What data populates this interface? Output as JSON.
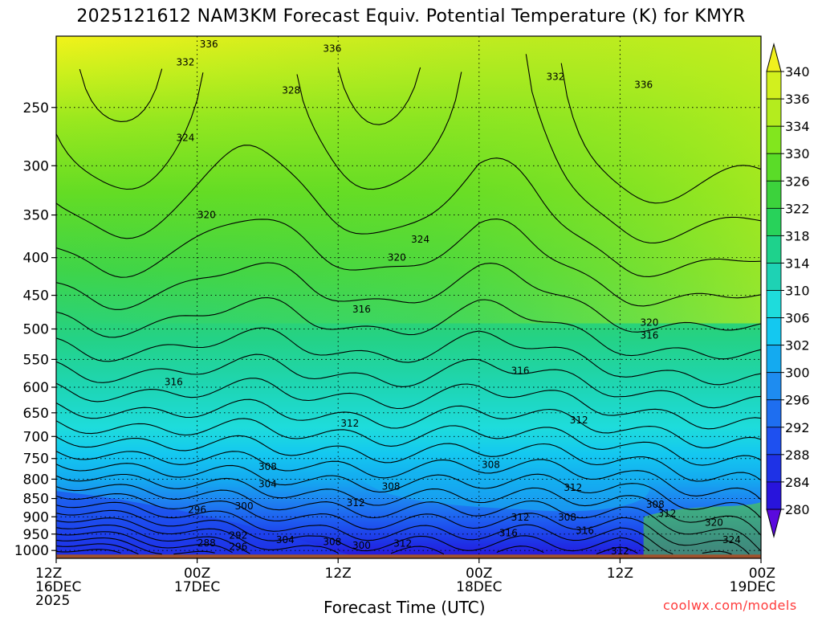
{
  "title": "2025121612 NAM3KM Forecast Equiv. Potential Temperature (K) for KMYR",
  "credit": "coolwx.com/models",
  "colors": {
    "contour": "#000000",
    "ground": "#a0522d",
    "credit": "#ff3b3b"
  },
  "chart_data": {
    "type": "heatmap",
    "title": "2025121612 NAM3KM Forecast Equiv. Potential Temperature (K) for KMYR",
    "xlabel": "Forecast Time (UTC)",
    "ylabel": "",
    "x_ticks": [
      {
        "hour": 0,
        "label": [
          "12Z",
          "16DEC",
          "2025"
        ]
      },
      {
        "hour": 12,
        "label": [
          "00Z",
          "17DEC"
        ]
      },
      {
        "hour": 24,
        "label": [
          "12Z"
        ]
      },
      {
        "hour": 36,
        "label": [
          "00Z",
          "18DEC"
        ]
      },
      {
        "hour": 48,
        "label": [
          "12Z"
        ]
      },
      {
        "hour": 60,
        "label": [
          "00Z",
          "19DEC"
        ]
      }
    ],
    "xlim": [
      0,
      60
    ],
    "y_scale": "log-pressure (hPa), inverted",
    "y_ticks": [
      250,
      300,
      350,
      400,
      450,
      500,
      550,
      600,
      650,
      700,
      750,
      800,
      850,
      900,
      950,
      1000
    ],
    "ylim": [
      1025,
      200
    ],
    "grid": "dotted",
    "colorbar": {
      "labels": [
        340,
        336,
        334,
        330,
        326,
        322,
        318,
        314,
        310,
        306,
        302,
        300,
        296,
        292,
        288,
        284,
        280
      ],
      "colors": [
        "#f0f01e",
        "#d2f01e",
        "#b4ec1e",
        "#82e61e",
        "#5adc28",
        "#3cd23c",
        "#28d25a",
        "#1ed28c",
        "#1ed2b4",
        "#1edcdc",
        "#14c8f0",
        "#14aaf0",
        "#1e8cf0",
        "#1e6ef0",
        "#1e50f0",
        "#1e32e6",
        "#2814dc",
        "#5a0ade"
      ],
      "placement": "right",
      "extend": "both"
    },
    "contour_labels": [
      {
        "hour": 13,
        "p": 205,
        "value": "336"
      },
      {
        "hour": 23.5,
        "p": 208,
        "value": "336"
      },
      {
        "hour": 11,
        "p": 217,
        "value": "332"
      },
      {
        "hour": 42.5,
        "p": 227,
        "value": "332"
      },
      {
        "hour": 50,
        "p": 233,
        "value": "336"
      },
      {
        "hour": 20,
        "p": 237,
        "value": "328"
      },
      {
        "hour": 11,
        "p": 275,
        "value": "324"
      },
      {
        "hour": 12.8,
        "p": 350,
        "value": "320"
      },
      {
        "hour": 31,
        "p": 378,
        "value": "324"
      },
      {
        "hour": 29,
        "p": 400,
        "value": "320"
      },
      {
        "hour": 26,
        "p": 470,
        "value": "316"
      },
      {
        "hour": 50.5,
        "p": 490,
        "value": "320"
      },
      {
        "hour": 50.5,
        "p": 510,
        "value": "316"
      },
      {
        "hour": 39.5,
        "p": 570,
        "value": "316"
      },
      {
        "hour": 10,
        "p": 590,
        "value": "316"
      },
      {
        "hour": 25,
        "p": 672,
        "value": "312"
      },
      {
        "hour": 44.5,
        "p": 665,
        "value": "312"
      },
      {
        "hour": 18,
        "p": 770,
        "value": "308"
      },
      {
        "hour": 37,
        "p": 765,
        "value": "308"
      },
      {
        "hour": 18,
        "p": 812,
        "value": "304"
      },
      {
        "hour": 28.5,
        "p": 818,
        "value": "308"
      },
      {
        "hour": 44,
        "p": 822,
        "value": "312"
      },
      {
        "hour": 16,
        "p": 870,
        "value": "300"
      },
      {
        "hour": 12,
        "p": 880,
        "value": "296"
      },
      {
        "hour": 25.5,
        "p": 862,
        "value": "312"
      },
      {
        "hour": 51,
        "p": 866,
        "value": "308"
      },
      {
        "hour": 52,
        "p": 890,
        "value": "312"
      },
      {
        "hour": 39.5,
        "p": 902,
        "value": "312"
      },
      {
        "hour": 43.5,
        "p": 902,
        "value": "308"
      },
      {
        "hour": 56,
        "p": 917,
        "value": "320"
      },
      {
        "hour": 38.5,
        "p": 947,
        "value": "316"
      },
      {
        "hour": 45,
        "p": 940,
        "value": "316"
      },
      {
        "hour": 15.5,
        "p": 954,
        "value": "292"
      },
      {
        "hour": 19.5,
        "p": 967,
        "value": "304"
      },
      {
        "hour": 23.5,
        "p": 973,
        "value": "308"
      },
      {
        "hour": 12.8,
        "p": 977,
        "value": "288"
      },
      {
        "hour": 15.5,
        "p": 988,
        "value": "296"
      },
      {
        "hour": 26,
        "p": 985,
        "value": "300"
      },
      {
        "hour": 29.5,
        "p": 978,
        "value": "312"
      },
      {
        "hour": 57.5,
        "p": 968,
        "value": "324"
      },
      {
        "hour": 48,
        "p": 1002,
        "value": "312"
      }
    ]
  }
}
